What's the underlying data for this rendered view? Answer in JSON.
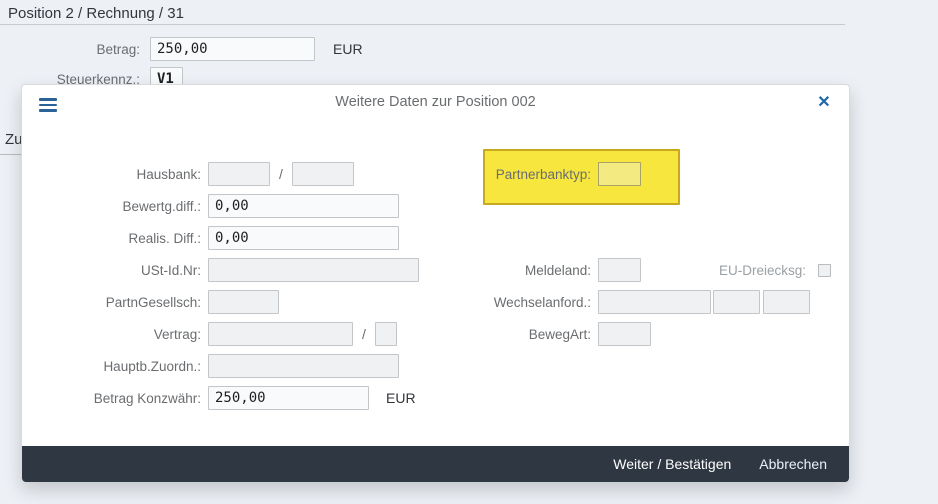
{
  "page": {
    "title": "Position 2 / Rechnung / 31",
    "betrag": {
      "label": "Betrag:",
      "value": "250,00",
      "currency": "EUR"
    },
    "steuerkennz": {
      "label": "Steuerkennz.:",
      "value": "V1"
    },
    "section_partial": "Zu"
  },
  "dialog": {
    "title": "Weitere Daten zur Position 002",
    "icons": {
      "menu": "hamburger-icon",
      "close_glyph": "✕"
    },
    "left_fields": [
      {
        "label": "Hausbank:",
        "value": "",
        "separator": "/",
        "value2": ""
      },
      {
        "label": "Bewertg.diff.:",
        "value": "0,00"
      },
      {
        "label": "Realis. Diff.:",
        "value": "0,00"
      },
      {
        "label": "USt-Id.Nr:",
        "value": ""
      },
      {
        "label": "PartnGesellsch:",
        "value": ""
      },
      {
        "label": "Vertrag:",
        "value": "",
        "separator": "/",
        "value2": ""
      },
      {
        "label": "Hauptb.Zuordn.:",
        "value": ""
      },
      {
        "label": "Betrag Konzwähr:",
        "value": "250,00",
        "suffix": "EUR"
      }
    ],
    "right_fields": {
      "partnerbanktyp": {
        "label": "Partnerbanktyp:",
        "value": "",
        "highlight_color": "#f7e63e"
      },
      "meldeland": {
        "label": "Meldeland:",
        "value": ""
      },
      "eu_dreiecksg": {
        "label": "EU-Dreiecksg:",
        "checked": false
      },
      "wechselanford": {
        "label": "Wechselanford.:",
        "values": [
          "",
          "",
          ""
        ]
      },
      "bewegart": {
        "label": "BewegArt:",
        "value": ""
      }
    },
    "footer": {
      "confirm_label": "Weiter / Bestätigen",
      "cancel_label": "Abbrechen"
    }
  },
  "colors": {
    "page_background": "#edf1f6",
    "dialog_background": "#ffffff",
    "footer_bar": "#2e3742",
    "highlight_yellow": "#f7e63e",
    "highlight_border": "#c8a81e",
    "accent_blue": "#2a6496"
  }
}
